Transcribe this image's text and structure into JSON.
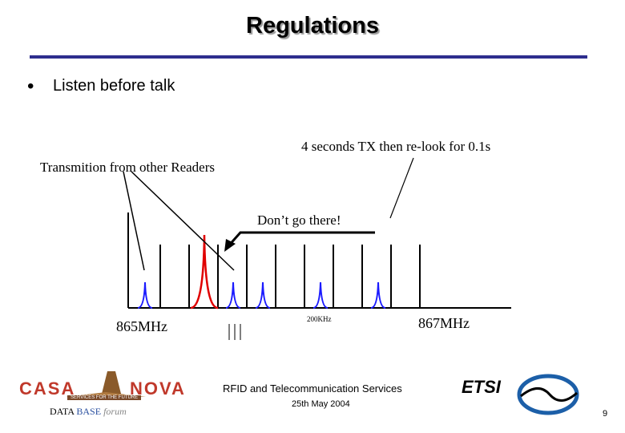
{
  "slide": {
    "title": "Regulations",
    "bullet": "Listen before talk",
    "bullet_symbol": "•"
  },
  "diagram": {
    "label_tx": "4 seconds TX then re-look for 0.1s",
    "label_transmition": "Transmition from other Readers",
    "label_dont": "Don’t go there!",
    "label_low_freq": "865MHz",
    "label_spacing": "200KHz",
    "label_high_freq": "867MHz",
    "colors": {
      "channel": "#000000",
      "reader": "#1a1aff",
      "busy": "#e00000",
      "axis": "#000000"
    }
  },
  "footer": {
    "title": "RFID and Telecommunication Services",
    "date": "25th May 2004",
    "page": "9"
  },
  "logos": {
    "casa_left": "CASA",
    "casa_right": "NOVA",
    "casa_sub": "SERVICES FOR THE FUTURE",
    "db_data": "DATA",
    "db_base": "BASE",
    "db_forum": "forum",
    "etsi": "ETSI"
  }
}
